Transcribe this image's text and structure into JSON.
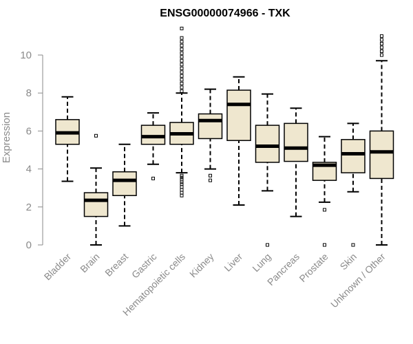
{
  "chart_data": {
    "type": "boxplot",
    "title": "ENSG00000074966 - TXK",
    "xlabel": "",
    "ylabel": "Expression",
    "ylim": [
      0,
      11.5
    ],
    "yticks": [
      0,
      2,
      4,
      6,
      8,
      10
    ],
    "colors": {
      "box_fill": "#efe7cf",
      "stroke": "#000000",
      "axis": "#8a8a8a"
    },
    "series": [
      {
        "name": "Bladder",
        "whisker_low": 3.35,
        "q1": 5.3,
        "median": 5.9,
        "q3": 6.6,
        "whisker_high": 7.8,
        "outliers": []
      },
      {
        "name": "Brain",
        "whisker_low": 0.0,
        "q1": 1.5,
        "median": 2.35,
        "q3": 2.75,
        "whisker_high": 4.05,
        "outliers": [
          5.75
        ]
      },
      {
        "name": "Breast",
        "whisker_low": 1.0,
        "q1": 2.6,
        "median": 3.4,
        "q3": 3.85,
        "whisker_high": 5.3,
        "outliers": []
      },
      {
        "name": "Gastric",
        "whisker_low": 4.25,
        "q1": 5.3,
        "median": 5.7,
        "q3": 6.3,
        "whisker_high": 6.95,
        "outliers": [
          3.5
        ]
      },
      {
        "name": "Hematopoietic cells",
        "whisker_low": 3.8,
        "q1": 5.3,
        "median": 5.85,
        "q3": 6.45,
        "whisker_high": 8.0,
        "outliers": [
          2.6,
          2.75,
          2.9,
          3.05,
          3.2,
          3.3,
          3.45,
          3.55,
          3.65,
          8.1,
          8.3,
          8.5,
          8.7,
          8.9,
          9.1,
          9.3,
          9.5,
          9.7,
          9.9,
          10.1,
          10.3,
          10.5,
          10.7,
          10.9,
          11.4
        ]
      },
      {
        "name": "Kidney",
        "whisker_low": 4.0,
        "q1": 5.6,
        "median": 6.55,
        "q3": 6.9,
        "whisker_high": 8.2,
        "outliers": [
          3.4,
          3.65
        ]
      },
      {
        "name": "Liver",
        "whisker_low": 2.1,
        "q1": 5.5,
        "median": 7.4,
        "q3": 8.15,
        "whisker_high": 8.85,
        "outliers": []
      },
      {
        "name": "Lung",
        "whisker_low": 2.85,
        "q1": 4.35,
        "median": 5.2,
        "q3": 6.3,
        "whisker_high": 7.95,
        "outliers": [
          0.0
        ]
      },
      {
        "name": "Pancreas",
        "whisker_low": 1.5,
        "q1": 4.4,
        "median": 5.1,
        "q3": 6.4,
        "whisker_high": 7.2,
        "outliers": []
      },
      {
        "name": "Prostate",
        "whisker_low": 2.25,
        "q1": 3.4,
        "median": 4.2,
        "q3": 4.35,
        "whisker_high": 5.7,
        "outliers": [
          0.0,
          1.85
        ]
      },
      {
        "name": "Skin",
        "whisker_low": 2.8,
        "q1": 3.8,
        "median": 4.8,
        "q3": 5.55,
        "whisker_high": 6.4,
        "outliers": [
          0.0
        ]
      },
      {
        "name": "Unknown / Other",
        "whisker_low": 0.0,
        "q1": 3.5,
        "median": 4.9,
        "q3": 6.0,
        "whisker_high": 9.7,
        "outliers": [
          10.0,
          10.2,
          10.4,
          10.6,
          10.8,
          11.0
        ]
      }
    ]
  }
}
